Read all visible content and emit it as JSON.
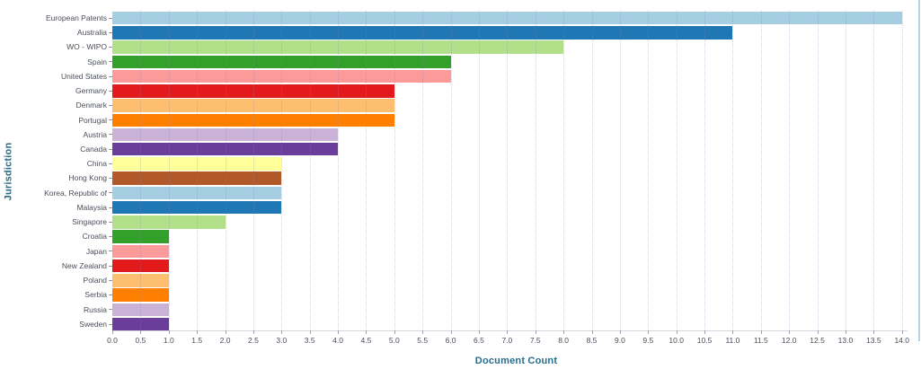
{
  "chart_data": {
    "type": "bar",
    "orientation": "horizontal",
    "title": "",
    "xlabel": "Document Count",
    "ylabel": "Jurisdiction",
    "xlim": [
      0,
      14.1
    ],
    "xtick_step": 0.5,
    "grid": "vertical-dotted",
    "legend_position": "none",
    "xticks": [
      "0.0",
      "0.5",
      "1.0",
      "1.5",
      "2.0",
      "2.5",
      "3.0",
      "3.5",
      "4.0",
      "4.5",
      "5.0",
      "5.5",
      "6.0",
      "6.5",
      "7.0",
      "7.5",
      "8.0",
      "8.5",
      "9.0",
      "9.5",
      "10.0",
      "10.5",
      "11.0",
      "11.5",
      "12.0",
      "12.5",
      "13.0",
      "13.5",
      "14.0"
    ],
    "categories": [
      "European Patents",
      "Australia",
      "WO - WIPO",
      "Spain",
      "United States",
      "Germany",
      "Denmark",
      "Portugal",
      "Austria",
      "Canada",
      "China",
      "Hong Kong",
      "Korea, Republic of",
      "Malaysia",
      "Singapore",
      "Croatia",
      "Japan",
      "New Zealand",
      "Poland",
      "Serbia",
      "Russia",
      "Sweden"
    ],
    "values": [
      14,
      11,
      8,
      6,
      6,
      5,
      5,
      5,
      4,
      4,
      3,
      3,
      3,
      3,
      2,
      1,
      1,
      1,
      1,
      1,
      1,
      1
    ],
    "bar_colors": [
      "#a6cee3",
      "#1f78b4",
      "#b2df8a",
      "#33a02c",
      "#fb9a99",
      "#e31a1c",
      "#fdbf6f",
      "#ff7f00",
      "#cab2d6",
      "#6a3d9a",
      "#ffff99",
      "#b15928",
      "#a6cee3",
      "#1f78b4",
      "#b2df8a",
      "#33a02c",
      "#fb9a99",
      "#e31a1c",
      "#fdbf6f",
      "#ff7f00",
      "#cab2d6",
      "#6a3d9a"
    ]
  },
  "colors": {
    "axis_title": "#266d8c",
    "tick_label": "#494e59",
    "grid_line": "#cfc9e4",
    "axis_line": "#d3d6dd",
    "right_edge": "#b9d2e4"
  }
}
